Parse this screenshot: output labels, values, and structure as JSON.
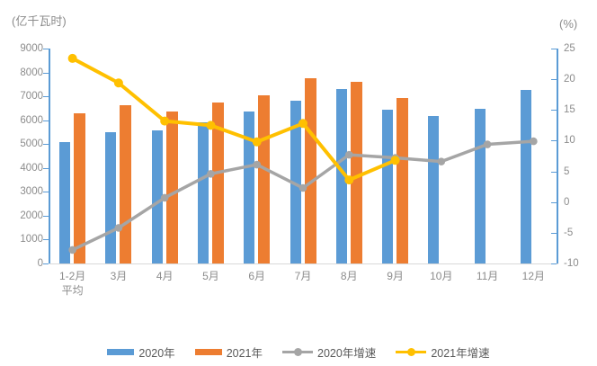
{
  "units": {
    "left": "(亿千瓦时)",
    "right": "(%)"
  },
  "colors": {
    "bar_2020": "#5B9BD5",
    "bar_2021": "#ED7D31",
    "line_2020_growth": "#A5A5A5",
    "line_2021_growth": "#FFC000",
    "vertical_axis_line": "#5B9BD5",
    "x_axis_line": "#D9D9D9",
    "axis_text": "#8c8c8c",
    "legend_text": "#595959"
  },
  "legend": [
    {
      "label": "2020年",
      "type": "bar",
      "color": "#5B9BD5"
    },
    {
      "label": "2021年",
      "type": "bar",
      "color": "#ED7D31"
    },
    {
      "label": "2020年增速",
      "type": "line",
      "color": "#A5A5A5"
    },
    {
      "label": "2021年增速",
      "type": "line",
      "color": "#FFC000"
    }
  ],
  "chart_data": {
    "type": "bar",
    "subtype": "bar-line-combo",
    "title": "",
    "xlabel": "",
    "ylabel_left": "(亿千瓦时)",
    "ylabel_right": "(%)",
    "categories": [
      "1-2月\n平均",
      "3月",
      "4月",
      "5月",
      "6月",
      "7月",
      "8月",
      "9月",
      "10月",
      "11月",
      "12月"
    ],
    "series": [
      {
        "name": "2020年",
        "type": "bar",
        "axis": "left",
        "color": "#5B9BD5",
        "values": [
          5102,
          5493,
          5572,
          5926,
          6350,
          6824,
          7294,
          6454,
          6172,
          6467,
          7277
        ]
      },
      {
        "name": "2021年",
        "type": "bar",
        "axis": "left",
        "color": "#ED7D31",
        "values": [
          6294,
          6631,
          6361,
          6724,
          7033,
          7758,
          7607,
          6947,
          null,
          null,
          null
        ]
      },
      {
        "name": "2020年增速",
        "type": "line",
        "axis": "right",
        "color": "#A5A5A5",
        "values": [
          -7.8,
          -4.2,
          0.7,
          4.6,
          6.1,
          2.3,
          7.7,
          7.2,
          6.6,
          9.4,
          9.9
        ]
      },
      {
        "name": "2021年增速",
        "type": "line",
        "axis": "right",
        "color": "#FFC000",
        "values": [
          23.4,
          19.4,
          13.2,
          12.5,
          9.8,
          12.8,
          3.6,
          6.8,
          null,
          null,
          null
        ]
      }
    ],
    "left_axis": {
      "min": 0,
      "max": 9000,
      "step": 1000,
      "tick_labels": [
        "0",
        "1000",
        "2000",
        "3000",
        "4000",
        "5000",
        "6000",
        "7000",
        "8000",
        "9000"
      ]
    },
    "right_axis": {
      "min": -10,
      "max": 25,
      "step": 5,
      "tick_labels": [
        "-10",
        "-5",
        "0",
        "5",
        "10",
        "15",
        "20",
        "25"
      ]
    },
    "gridlines": false,
    "legend_position": "bottom"
  }
}
